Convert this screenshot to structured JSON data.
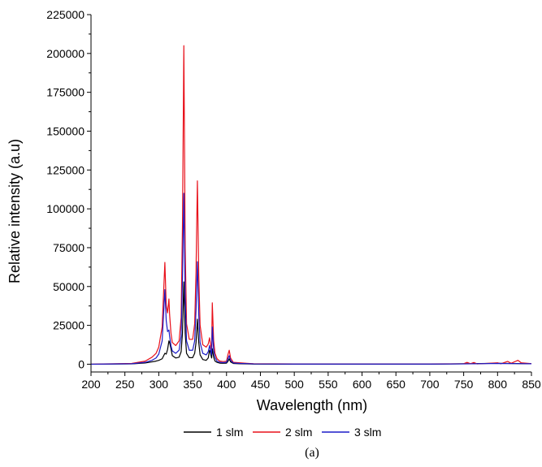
{
  "chart_data": {
    "type": "line",
    "title": "",
    "xlabel": "Wavelength (nm)",
    "ylabel": "Relative intensity (a.u)",
    "xlim": [
      200,
      850
    ],
    "ylim": [
      -5000,
      225000
    ],
    "xticks": [
      200,
      250,
      300,
      350,
      400,
      450,
      500,
      550,
      600,
      650,
      700,
      750,
      800,
      850
    ],
    "yticks": [
      0,
      25000,
      50000,
      75000,
      100000,
      125000,
      150000,
      175000,
      200000,
      225000
    ],
    "xtick_labels": [
      "200",
      "250",
      "300",
      "350",
      "400",
      "450",
      "500",
      "550",
      "600",
      "650",
      "700",
      "750",
      "800",
      "850"
    ],
    "ytick_labels": [
      "0",
      "25000",
      "50000",
      "75000",
      "100000",
      "125000",
      "150000",
      "175000",
      "200000",
      "225000"
    ],
    "grid": false,
    "legend_position": "bottom",
    "caption": "(a)",
    "series": [
      {
        "name": "1 slm",
        "color": "#000000",
        "x": [
          200,
          260,
          280,
          290,
          296,
          300,
          305,
          309,
          311,
          313,
          315,
          316,
          318,
          320,
          325,
          330,
          333,
          335,
          337,
          339,
          341,
          345,
          350,
          353,
          355,
          357,
          359,
          361,
          365,
          370,
          373,
          375,
          376,
          378,
          379,
          381,
          383,
          386,
          390,
          395,
          400,
          402,
          404,
          406,
          410,
          420,
          430,
          440,
          500,
          600,
          700,
          750,
          800,
          850
        ],
        "y": [
          0,
          200,
          800,
          1500,
          2000,
          2500,
          3500,
          7000,
          6500,
          9500,
          15000,
          14000,
          10000,
          5500,
          4000,
          4500,
          8000,
          20000,
          53000,
          20000,
          7000,
          4200,
          4200,
          7000,
          14000,
          29000,
          14000,
          6000,
          3000,
          2500,
          4000,
          9000,
          8000,
          4000,
          10000,
          4500,
          2000,
          1200,
          700,
          600,
          700,
          1800,
          3500,
          1500,
          500,
          300,
          200,
          100,
          0,
          0,
          0,
          300,
          600,
          300
        ]
      },
      {
        "name": "2 slm",
        "color": "#e8101a",
        "x": [
          200,
          260,
          280,
          290,
          296,
          300,
          305,
          309,
          311,
          313,
          315,
          316,
          318,
          320,
          325,
          330,
          333,
          335,
          337,
          339,
          341,
          345,
          350,
          353,
          355,
          357,
          359,
          361,
          365,
          370,
          373,
          375,
          376,
          378,
          379,
          381,
          383,
          386,
          390,
          395,
          400,
          402,
          404,
          406,
          410,
          420,
          430,
          440,
          500,
          600,
          700,
          750,
          755,
          760,
          765,
          770,
          800,
          805,
          815,
          820,
          830,
          835,
          850
        ],
        "y": [
          0,
          500,
          2000,
          4500,
          7000,
          11000,
          24000,
          65500,
          38000,
          33000,
          42000,
          32000,
          20000,
          14000,
          12000,
          15000,
          30000,
          90000,
          205000,
          75000,
          26000,
          16000,
          16000,
          26000,
          60000,
          118000,
          58000,
          25000,
          12500,
          11000,
          13000,
          17000,
          14000,
          9000,
          39500,
          15000,
          7000,
          3500,
          2000,
          1700,
          1900,
          6000,
          9000,
          4000,
          1200,
          900,
          600,
          300,
          200,
          200,
          200,
          300,
          1200,
          300,
          1100,
          200,
          900,
          300,
          1800,
          600,
          2500,
          900,
          400
        ]
      },
      {
        "name": "3 slm",
        "color": "#1b1bc8",
        "x": [
          200,
          260,
          280,
          290,
          296,
          300,
          305,
          309,
          311,
          313,
          315,
          316,
          318,
          320,
          325,
          330,
          333,
          335,
          337,
          339,
          341,
          345,
          350,
          353,
          355,
          357,
          359,
          361,
          365,
          370,
          373,
          375,
          376,
          378,
          379,
          381,
          383,
          386,
          390,
          395,
          400,
          402,
          404,
          406,
          410,
          420,
          430,
          440,
          500,
          600,
          700,
          750,
          800,
          850
        ],
        "y": [
          0,
          300,
          1200,
          2500,
          4000,
          6500,
          15000,
          48000,
          28000,
          21000,
          22000,
          18000,
          12000,
          8500,
          7000,
          9000,
          18000,
          55000,
          110000,
          42000,
          15000,
          9000,
          9000,
          15000,
          35000,
          66000,
          32000,
          14000,
          7000,
          6000,
          8000,
          12000,
          10000,
          6000,
          24000,
          9000,
          4500,
          2000,
          1200,
          1000,
          1200,
          3500,
          5500,
          2500,
          800,
          500,
          400,
          200,
          100,
          100,
          100,
          200,
          500,
          300
        ]
      }
    ]
  }
}
